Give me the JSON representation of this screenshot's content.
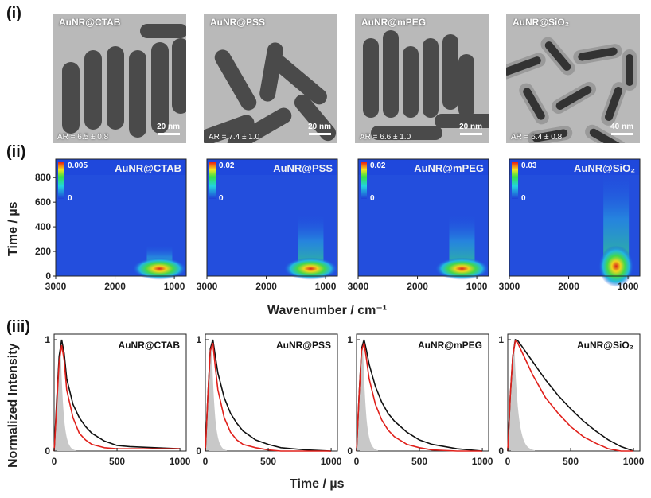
{
  "row_labels": [
    "(i)",
    "(ii)",
    "(iii)"
  ],
  "samples": [
    {
      "name": "AuNR@CTAB",
      "ar": "AR = 6.5 ± 0.8",
      "scale": "20 nm",
      "cbar_max": "0.005",
      "cbar_min": "0"
    },
    {
      "name": "AuNR@PSS",
      "ar": "AR = 7.4 ± 1.0",
      "scale": "20 nm",
      "cbar_max": "0.02",
      "cbar_min": "0"
    },
    {
      "name": "AuNR@mPEG",
      "ar": "AR = 6.6 ± 1.0",
      "scale": "20 nm",
      "cbar_max": "0.02",
      "cbar_min": "0"
    },
    {
      "name": "AuNR@SiO₂",
      "ar": "AR = 6.4 ± 0.8",
      "scale": "40 nm",
      "cbar_max": "0.03",
      "cbar_min": "0"
    }
  ],
  "heatmap_axes": {
    "ylabel": "Time / µs",
    "xlabel": "Wavenumber / cm⁻¹",
    "x_ticks": [
      "3000",
      "2000",
      "1000"
    ],
    "y_ticks": [
      "0",
      "200",
      "400",
      "600",
      "800"
    ]
  },
  "decay_axes": {
    "ylabel": "Normalized Intensity",
    "xlabel": "Time / µs",
    "x_ticks": [
      "0",
      "500",
      "1000"
    ],
    "y_ticks": [
      "0",
      "1"
    ]
  },
  "colors": {
    "red": "#e0201b",
    "black": "#111111",
    "gray": "#c8c8c8"
  },
  "chart_data": [
    {
      "type": "heatmap",
      "panel": "(ii) AuNR@CTAB",
      "xlabel": "Wavenumber / cm⁻¹",
      "ylabel": "Time / µs",
      "xlim": [
        3000,
        800
      ],
      "ylim": [
        0,
        950
      ],
      "colorbar": {
        "min": 0,
        "max": 0.005
      },
      "hotspot": {
        "wavenumber": 1250,
        "time": 60
      }
    },
    {
      "type": "heatmap",
      "panel": "(ii) AuNR@PSS",
      "xlabel": "Wavenumber / cm⁻¹",
      "ylabel": "Time / µs",
      "xlim": [
        3000,
        800
      ],
      "ylim": [
        0,
        950
      ],
      "colorbar": {
        "min": 0,
        "max": 0.02
      },
      "hotspot": {
        "wavenumber": 1250,
        "time": 60
      }
    },
    {
      "type": "heatmap",
      "panel": "(ii) AuNR@mPEG",
      "xlabel": "Wavenumber / cm⁻¹",
      "ylabel": "Time / µs",
      "xlim": [
        3000,
        800
      ],
      "ylim": [
        0,
        950
      ],
      "colorbar": {
        "min": 0,
        "max": 0.02
      },
      "hotspot": {
        "wavenumber": 1250,
        "time": 60
      }
    },
    {
      "type": "heatmap",
      "panel": "(ii) AuNR@SiO₂",
      "xlabel": "Wavenumber / cm⁻¹",
      "ylabel": "Time / µs",
      "xlim": [
        3000,
        800
      ],
      "ylim": [
        0,
        950
      ],
      "colorbar": {
        "min": 0,
        "max": 0.03
      },
      "hotspot": {
        "wavenumber": 1200,
        "time": 80
      }
    },
    {
      "type": "line",
      "panel": "(iii) AuNR@CTAB",
      "xlabel": "Time / µs",
      "ylabel": "Normalized Intensity",
      "xlim": [
        0,
        1050
      ],
      "ylim": [
        0,
        1.05
      ],
      "x": [
        0,
        20,
        40,
        60,
        80,
        100,
        150,
        200,
        250,
        300,
        400,
        500,
        600,
        800,
        1000
      ],
      "series": [
        {
          "values": [
            0,
            0.45,
            0.85,
            1.0,
            0.88,
            0.65,
            0.42,
            0.3,
            0.22,
            0.16,
            0.09,
            0.05,
            0.04,
            0.03,
            0.02
          ]
        },
        {
          "values": [
            0,
            0.4,
            0.8,
            0.95,
            0.82,
            0.55,
            0.3,
            0.16,
            0.1,
            0.06,
            0.03,
            0.02,
            0.02,
            0.02,
            0.02
          ]
        }
      ],
      "irf": {
        "peak_time": 50,
        "width": 40
      }
    },
    {
      "type": "line",
      "panel": "(iii) AuNR@PSS",
      "xlabel": "Time / µs",
      "ylabel": "Normalized Intensity",
      "xlim": [
        0,
        1050
      ],
      "ylim": [
        0,
        1.05
      ],
      "x": [
        0,
        20,
        40,
        60,
        80,
        100,
        150,
        200,
        250,
        300,
        400,
        500,
        600,
        800,
        1000
      ],
      "series": [
        {
          "values": [
            0,
            0.5,
            0.92,
            1.0,
            0.85,
            0.7,
            0.48,
            0.34,
            0.25,
            0.18,
            0.1,
            0.06,
            0.03,
            0.01,
            0.0
          ]
        },
        {
          "values": [
            0,
            0.5,
            0.9,
            0.97,
            0.75,
            0.55,
            0.3,
            0.17,
            0.1,
            0.06,
            0.03,
            0.01,
            0.0,
            0.0,
            0.0
          ]
        }
      ],
      "irf": {
        "peak_time": 50,
        "width": 40
      }
    },
    {
      "type": "line",
      "panel": "(iii) AuNR@mPEG",
      "xlabel": "Time / µs",
      "ylabel": "Normalized Intensity",
      "xlim": [
        0,
        1050
      ],
      "ylim": [
        0,
        1.05
      ],
      "x": [
        0,
        20,
        40,
        60,
        80,
        100,
        150,
        200,
        250,
        300,
        400,
        500,
        600,
        800,
        1000
      ],
      "series": [
        {
          "values": [
            0,
            0.5,
            0.92,
            1.0,
            0.9,
            0.78,
            0.58,
            0.44,
            0.34,
            0.27,
            0.17,
            0.1,
            0.06,
            0.02,
            0.0
          ]
        },
        {
          "values": [
            0,
            0.5,
            0.9,
            0.97,
            0.82,
            0.65,
            0.42,
            0.28,
            0.19,
            0.13,
            0.06,
            0.03,
            0.01,
            0.0,
            0.0
          ]
        }
      ],
      "irf": {
        "peak_time": 50,
        "width": 40
      }
    },
    {
      "type": "line",
      "panel": "(iii) AuNR@SiO₂",
      "xlabel": "Time / µs",
      "ylabel": "Normalized Intensity",
      "xlim": [
        0,
        1050
      ],
      "ylim": [
        0,
        1.05
      ],
      "x": [
        0,
        20,
        40,
        60,
        80,
        100,
        150,
        200,
        250,
        300,
        400,
        500,
        600,
        700,
        800,
        900,
        1000
      ],
      "series": [
        {
          "values": [
            0,
            0.5,
            0.85,
            1.0,
            0.99,
            0.96,
            0.88,
            0.8,
            0.72,
            0.64,
            0.5,
            0.38,
            0.27,
            0.18,
            0.1,
            0.04,
            0.0
          ]
        },
        {
          "values": [
            0,
            0.5,
            0.85,
            0.99,
            0.97,
            0.92,
            0.8,
            0.68,
            0.58,
            0.48,
            0.34,
            0.22,
            0.13,
            0.07,
            0.02,
            0.0,
            0.0
          ]
        }
      ],
      "irf": {
        "peak_time": 50,
        "width": 55
      }
    }
  ]
}
